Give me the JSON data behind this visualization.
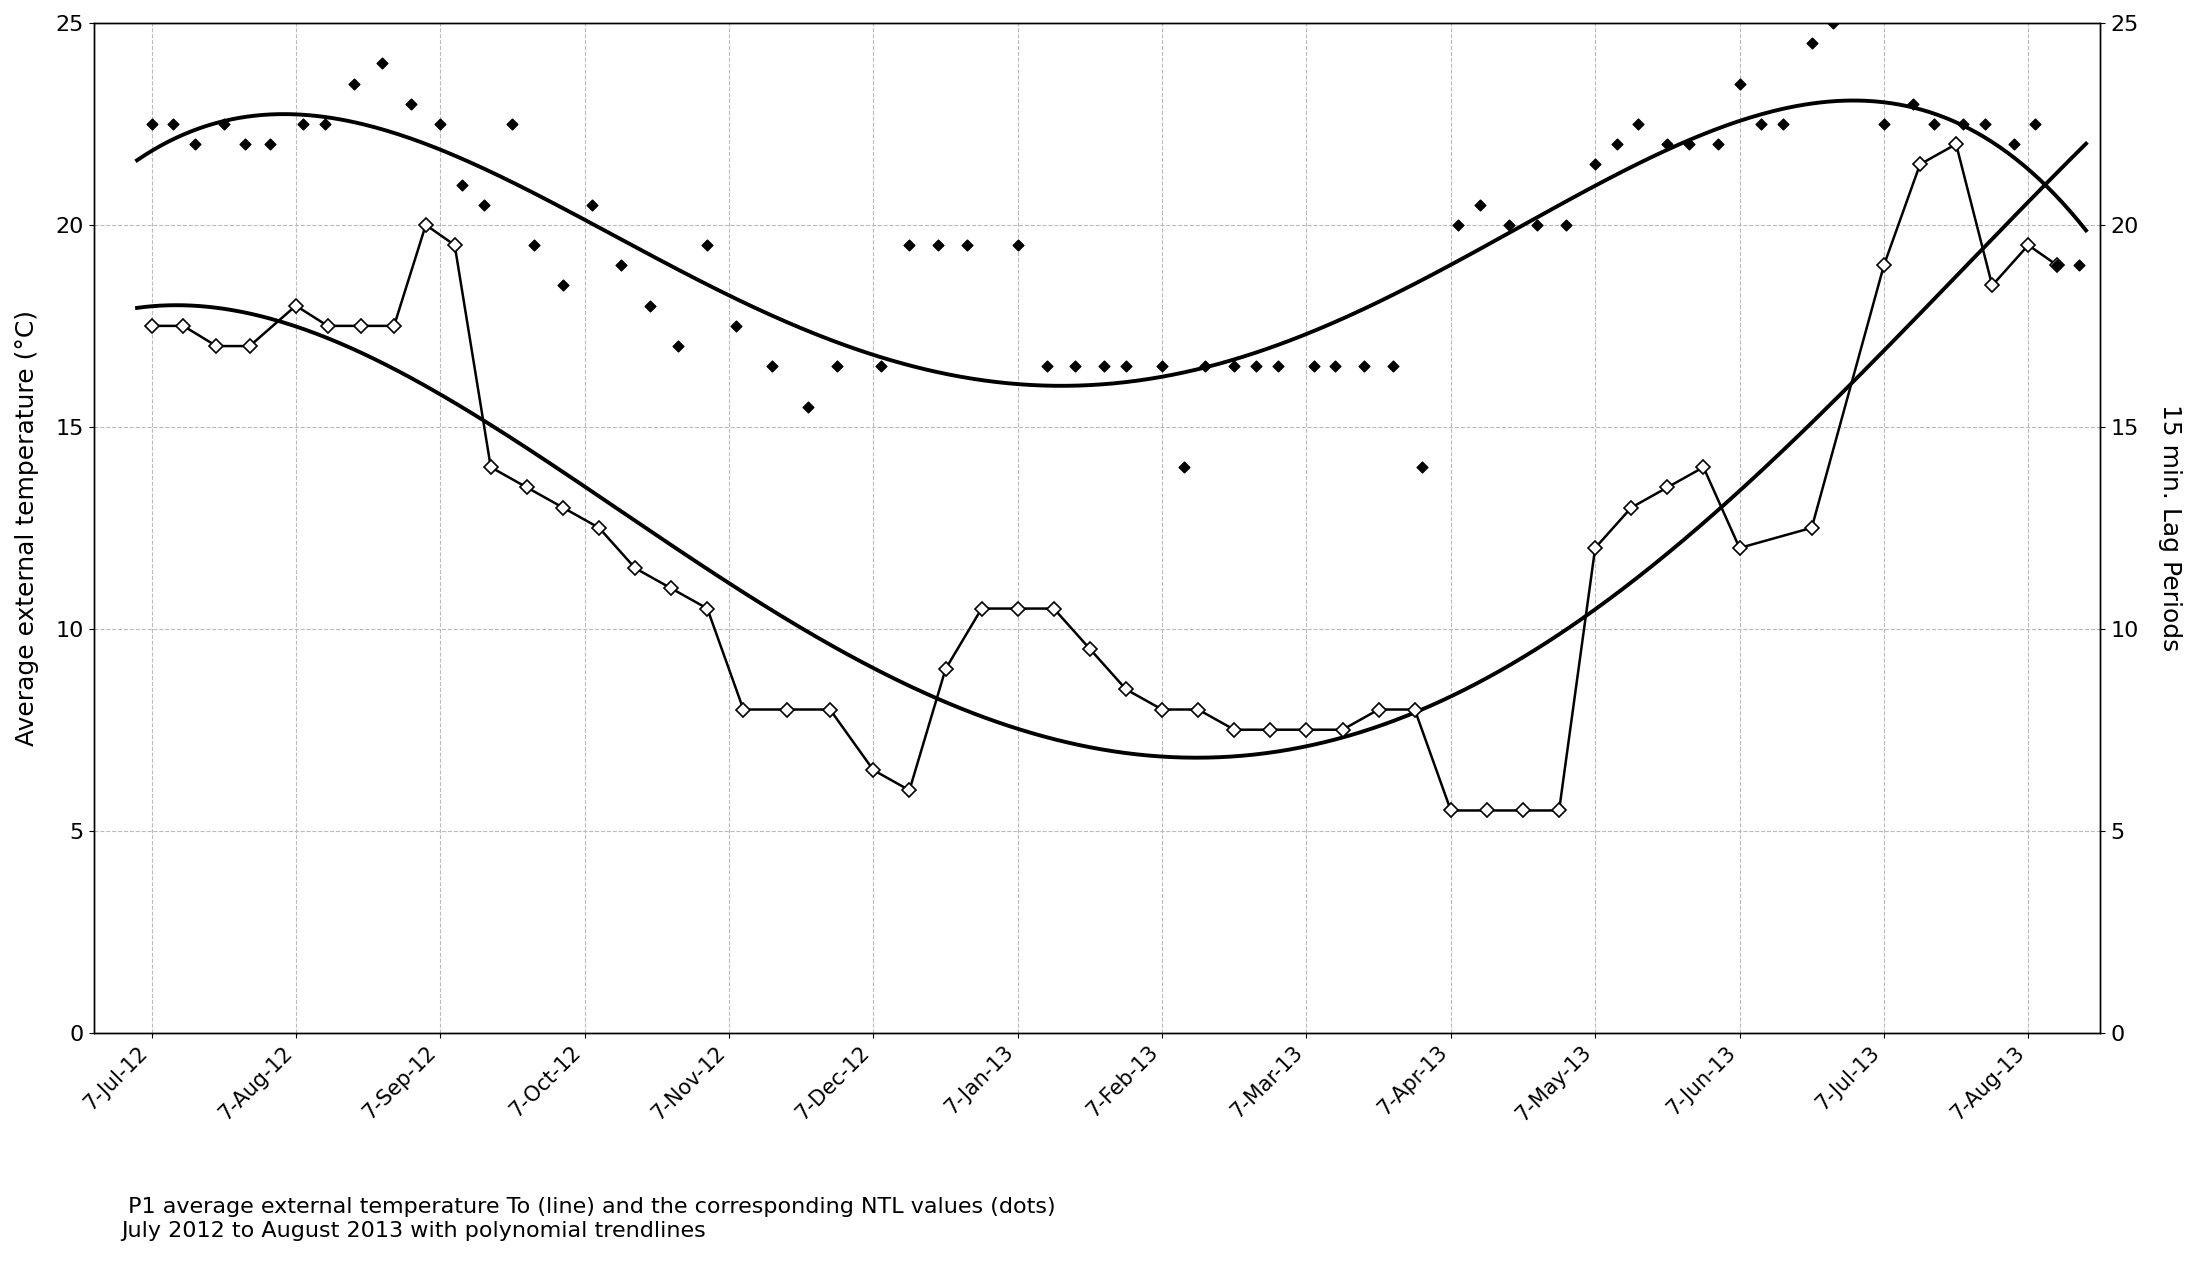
{
  "title_line1": " P1 average external temperature To (line) and the corresponding NTL values (dots)",
  "title_line2": "July 2012 to August 2013 with polynomial trendlines",
  "ylabel_left": "Average external temperature (°C)",
  "ylabel_right": "15 min. Lag Periods",
  "ylim": [
    0,
    25
  ],
  "yticks": [
    0,
    5,
    10,
    15,
    20,
    25
  ],
  "xtick_labels": [
    "7-Jul-12",
    "7-Aug-12",
    "7-Sep-12",
    "7-Oct-12",
    "7-Nov-12",
    "7-Dec-12",
    "7-Jan-13",
    "7-Feb-13",
    "7-Mar-13",
    "7-Apr-13",
    "7-May-13",
    "7-Jun-13",
    "7-Jul-13",
    "7-Aug-13"
  ],
  "background_color": "#ffffff",
  "ntl_line_x": [
    0,
    0.22,
    0.45,
    0.68,
    1.0,
    1.22,
    1.45,
    1.68,
    1.9,
    2.1,
    2.35,
    2.6,
    2.85,
    3.1,
    3.35,
    3.6,
    3.85,
    4.1,
    4.4,
    4.7,
    5.0,
    5.25,
    5.5,
    5.75,
    6.0,
    6.25,
    6.5,
    6.75,
    7.0,
    7.25,
    7.5,
    7.75,
    8.0,
    8.25,
    8.5,
    8.75,
    9.0,
    9.25,
    9.5,
    9.75,
    10.0,
    10.25,
    10.5,
    10.75,
    11.0,
    11.5,
    12.0,
    12.25,
    12.5,
    12.75,
    13.0,
    13.2
  ],
  "ntl_line_y": [
    17.5,
    17.5,
    17.0,
    17.0,
    18.0,
    17.5,
    17.5,
    17.5,
    20.0,
    19.5,
    14.0,
    13.5,
    13.0,
    12.5,
    11.5,
    11.0,
    10.5,
    8.0,
    8.0,
    8.0,
    6.5,
    6.0,
    9.0,
    10.5,
    10.5,
    10.5,
    9.5,
    8.5,
    8.0,
    8.0,
    7.5,
    7.5,
    7.5,
    7.5,
    8.0,
    8.0,
    5.5,
    5.5,
    5.5,
    5.5,
    12.0,
    13.0,
    13.5,
    14.0,
    12.0,
    12.5,
    19.0,
    21.5,
    22.0,
    18.5,
    19.5,
    19.0
  ],
  "ntl_dots_x": [
    0.0,
    0.15,
    0.3,
    0.5,
    0.65,
    0.82,
    1.05,
    1.2,
    1.4,
    1.6,
    1.8,
    2.0,
    2.15,
    2.3,
    2.5,
    2.65,
    2.85,
    3.05,
    3.25,
    3.45,
    3.65,
    3.85,
    4.05,
    4.3,
    4.55,
    4.75,
    5.05,
    5.25,
    5.45,
    5.65,
    6.0,
    6.2,
    6.4,
    6.6,
    6.75,
    7.0,
    7.15,
    7.3,
    7.5,
    7.65,
    7.8,
    8.05,
    8.2,
    8.4,
    8.6,
    8.8,
    9.05,
    9.2,
    9.4,
    9.6,
    9.8,
    10.0,
    10.15,
    10.3,
    10.5,
    10.65,
    10.85,
    11.0,
    11.15,
    11.3,
    11.5,
    11.65,
    12.0,
    12.2,
    12.35,
    12.55,
    12.7,
    12.9,
    13.05,
    13.2,
    13.35
  ],
  "ntl_dots_y": [
    22.5,
    22.5,
    22.0,
    22.5,
    22.0,
    22.0,
    22.5,
    22.5,
    23.5,
    24.0,
    23.0,
    22.5,
    21.0,
    20.5,
    22.5,
    19.5,
    18.5,
    20.5,
    19.0,
    18.0,
    17.0,
    19.5,
    17.5,
    16.5,
    15.5,
    16.5,
    16.5,
    19.5,
    19.5,
    19.5,
    19.5,
    16.5,
    16.5,
    16.5,
    16.5,
    16.5,
    14.0,
    16.5,
    16.5,
    16.5,
    16.5,
    16.5,
    16.5,
    16.5,
    16.5,
    14.0,
    20.0,
    20.5,
    20.0,
    20.0,
    20.0,
    21.5,
    22.0,
    22.5,
    22.0,
    22.0,
    22.0,
    23.5,
    22.5,
    22.5,
    24.5,
    25.0,
    22.5,
    23.0,
    22.5,
    22.5,
    22.5,
    22.0,
    22.5,
    19.0,
    19.0
  ]
}
